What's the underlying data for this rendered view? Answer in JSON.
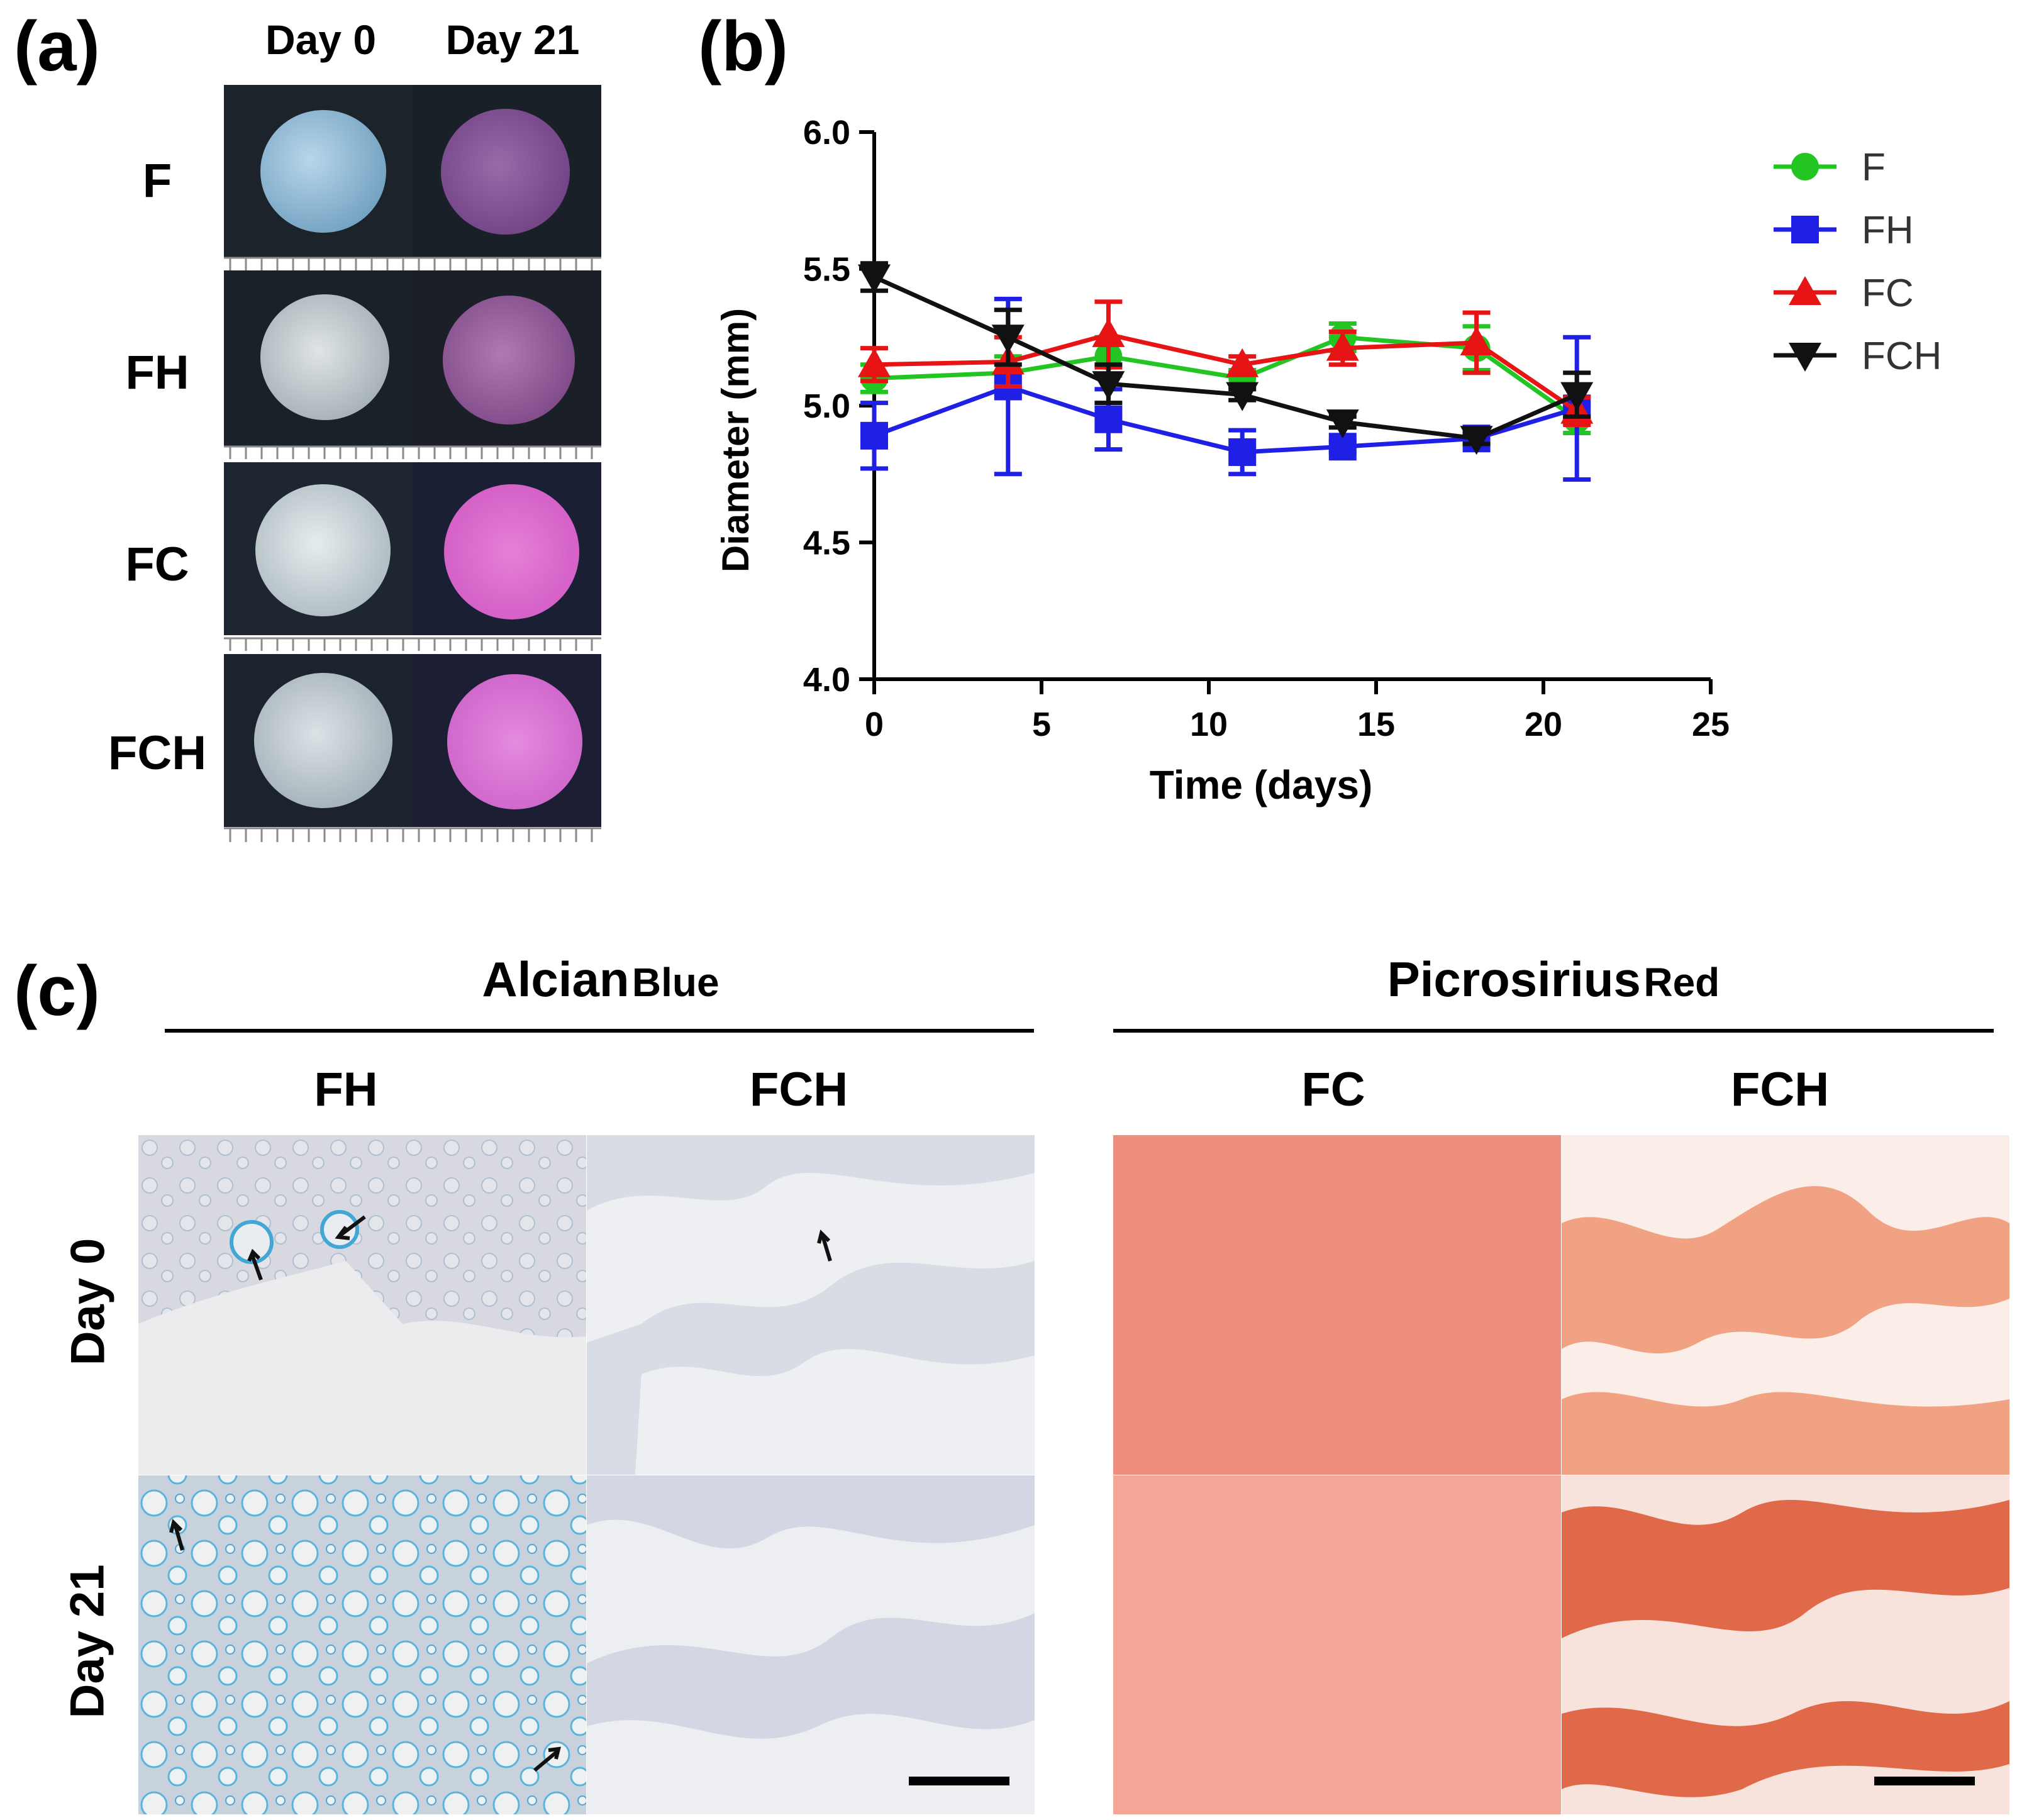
{
  "panel_a": {
    "label": "(a)",
    "col_headers": [
      "Day 0",
      "Day 21"
    ],
    "rows": [
      "F",
      "FH",
      "FC",
      "FCH"
    ]
  },
  "panel_b": {
    "label": "(b)"
  },
  "panel_c": {
    "label": "(c)",
    "stains": [
      {
        "name": "Alcian",
        "suffix": "Blue",
        "groups": [
          "FH",
          "FCH"
        ]
      },
      {
        "name": "Picrosirius",
        "suffix": "Red",
        "groups": [
          "FC",
          "FCH"
        ]
      }
    ],
    "rows": [
      "Day 0",
      "Day 21"
    ]
  },
  "colors": {
    "F": "#22c522",
    "FH": "#1f1fe6",
    "FC": "#e61414",
    "FCH": "#111111",
    "alcian_bg": "#ccd3dc",
    "alcian_stain": "#3fa9d6",
    "picro": "#ec8a79"
  },
  "chart_data": {
    "type": "line",
    "title": "",
    "xlabel": "Time (days)",
    "ylabel": "Diameter (mm)",
    "xlim": [
      0,
      25
    ],
    "ylim": [
      4.0,
      6.0
    ],
    "xticks": [
      "0",
      "5",
      "10",
      "15",
      "20",
      "25"
    ],
    "yticks": [
      "4.0",
      "4.5",
      "5.0",
      "5.5",
      "6.0"
    ],
    "legend_position": "top-right",
    "x": [
      0,
      4,
      7,
      11,
      14,
      18,
      21
    ],
    "series": [
      {
        "name": "F",
        "marker": "circle",
        "values": [
          5.1,
          5.12,
          5.18,
          5.1,
          5.25,
          5.21,
          4.95
        ],
        "errors": [
          0.05,
          0.06,
          0.07,
          0.03,
          0.05,
          0.08,
          0.05
        ]
      },
      {
        "name": "FH",
        "marker": "square",
        "values": [
          4.89,
          5.07,
          4.95,
          4.83,
          4.85,
          4.88,
          4.99
        ],
        "errors": [
          0.12,
          0.32,
          0.11,
          0.08,
          0.02,
          0.02,
          0.26
        ]
      },
      {
        "name": "FC",
        "marker": "triangle-up",
        "values": [
          5.15,
          5.16,
          5.26,
          5.15,
          5.21,
          5.23,
          4.98
        ],
        "errors": [
          0.06,
          0.09,
          0.12,
          0.03,
          0.06,
          0.11,
          0.05
        ]
      },
      {
        "name": "FCH",
        "marker": "triangle-down",
        "values": [
          5.47,
          5.25,
          5.08,
          5.04,
          4.94,
          4.88,
          5.04
        ],
        "errors": [
          0.05,
          0.1,
          0.07,
          0.02,
          0.02,
          0.02,
          0.08
        ]
      }
    ]
  }
}
